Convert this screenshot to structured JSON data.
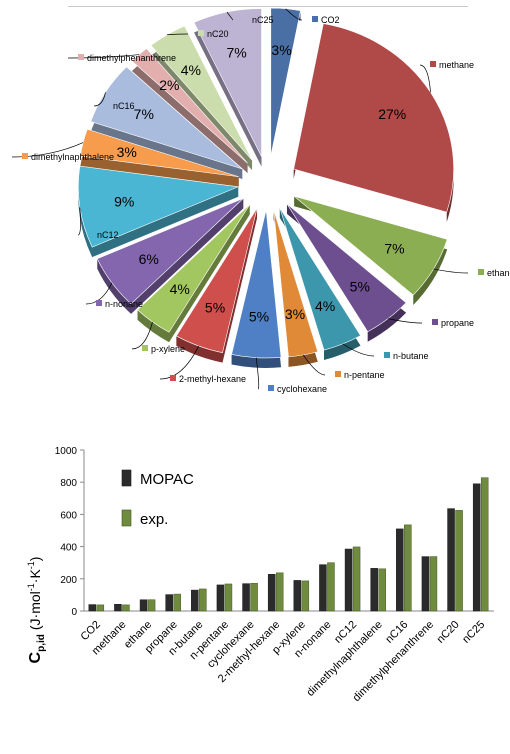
{
  "chart_data": [
    {
      "type": "pie",
      "exploded": true,
      "three_d": true,
      "legend": "callout-labels",
      "slices": [
        {
          "label": "CO2",
          "value": 3,
          "text": "3%",
          "color": "#4A6FA5"
        },
        {
          "label": "methane",
          "value": 27,
          "text": "27%",
          "color": "#B04A48"
        },
        {
          "label": "ethane",
          "value": 7,
          "text": "7%",
          "color": "#8CAE52"
        },
        {
          "label": "propane",
          "value": 5,
          "text": "5%",
          "color": "#6D4E8F"
        },
        {
          "label": "n-butane",
          "value": 4,
          "text": "4%",
          "color": "#3D97AC"
        },
        {
          "label": "n-pentane",
          "value": 3,
          "text": "3%",
          "color": "#E08A38"
        },
        {
          "label": "cyclohexane",
          "value": 5,
          "text": "5%",
          "color": "#4F80C5"
        },
        {
          "label": "2-methyl-hexane",
          "value": 5,
          "text": "5%",
          "color": "#CE4F4C"
        },
        {
          "label": "p-xylene",
          "value": 4,
          "text": "4%",
          "color": "#A3C760"
        },
        {
          "label": "n-nonane",
          "value": 6,
          "text": "6%",
          "color": "#8466AE"
        },
        {
          "label": "nC12",
          "value": 9,
          "text": "9%",
          "color": "#4BB6D3"
        },
        {
          "label": "dimethylnaphthalene",
          "value": 3,
          "text": "3%",
          "color": "#F79B4D"
        },
        {
          "label": "nC16",
          "value": 7,
          "text": "7%",
          "color": "#A9BCDE"
        },
        {
          "label": "dimethylphenanthrene",
          "value": 2,
          "text": "2%",
          "color": "#E2AFAE"
        },
        {
          "label": "nC20",
          "value": 4,
          "text": "4%",
          "color": "#CBDDAC"
        },
        {
          "label": "nC25",
          "value": 7,
          "text": "7%",
          "color": "#BDB4D3"
        }
      ]
    },
    {
      "type": "bar",
      "categories": [
        "CO2",
        "methane",
        "ethane",
        "propane",
        "n-butane",
        "n-pentane",
        "cyclohexane",
        "2-methyl-hexane",
        "p-xylene",
        "n-nonane",
        "nC12",
        "dimethylnaphthalene",
        "nC16",
        "dimethylphenanthrene",
        "nC20",
        "nC25"
      ],
      "series": [
        {
          "name": "MOPAC",
          "color": "#2b2b2b",
          "values": [
            40,
            42,
            70,
            102,
            130,
            162,
            170,
            228,
            190,
            288,
            385,
            265,
            510,
            338,
            636,
            790
          ]
        },
        {
          "name": "exp.",
          "color": "#6f8c3e",
          "values": [
            38,
            38,
            70,
            105,
            137,
            168,
            172,
            237,
            187,
            300,
            398,
            262,
            535,
            338,
            625,
            828
          ]
        }
      ],
      "ylabel_main": "C",
      "ylabel_sub": "p,id",
      "ylabel_unit": "(J·mol",
      "ylabel_unit_sup1": "-1",
      "ylabel_unit_mid": "·K",
      "ylabel_unit_sup2": "-1",
      "ylabel_unit_end": ")",
      "ylim": [
        0,
        1000
      ],
      "yticks": [
        0,
        200,
        400,
        600,
        800,
        1000
      ],
      "grid": false,
      "legend": "top-left"
    }
  ]
}
